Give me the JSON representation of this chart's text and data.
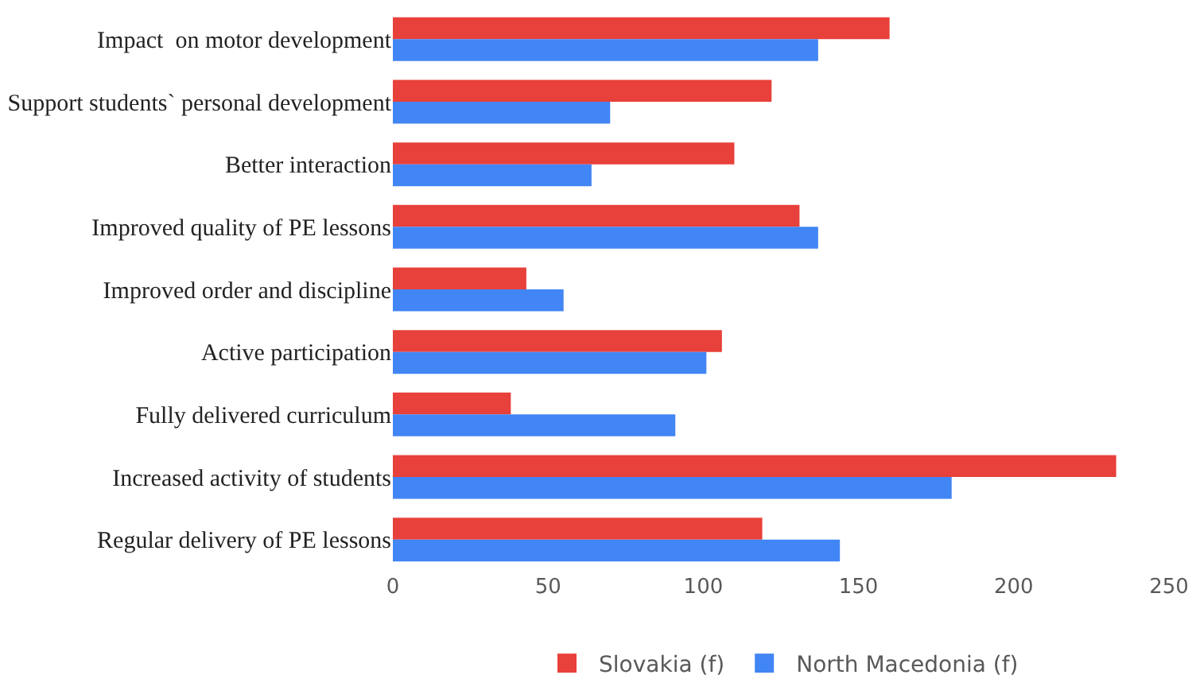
{
  "chart_data": {
    "type": "bar",
    "orientation": "horizontal",
    "categories": [
      "Impact  on motor development",
      "Support students` personal development",
      "Better interaction",
      "Improved quality of PE lessons",
      "Improved order and discipline",
      "Active participation",
      "Fully delivered curriculum",
      "Increased activity of students",
      "Regular delivery of PE lessons"
    ],
    "series": [
      {
        "name": "Slovakia (f)",
        "color": "#e8403a",
        "values": [
          160,
          122,
          110,
          131,
          43,
          106,
          38,
          233,
          119
        ]
      },
      {
        "name": "North Macedonia (f)",
        "color": "#4285f4",
        "values": [
          137,
          70,
          64,
          137,
          55,
          101,
          91,
          180,
          144
        ]
      }
    ],
    "xlim": [
      0,
      250
    ],
    "xticks": [
      0,
      50,
      100,
      150,
      200,
      250
    ],
    "grid": false,
    "legend": "bottom"
  }
}
